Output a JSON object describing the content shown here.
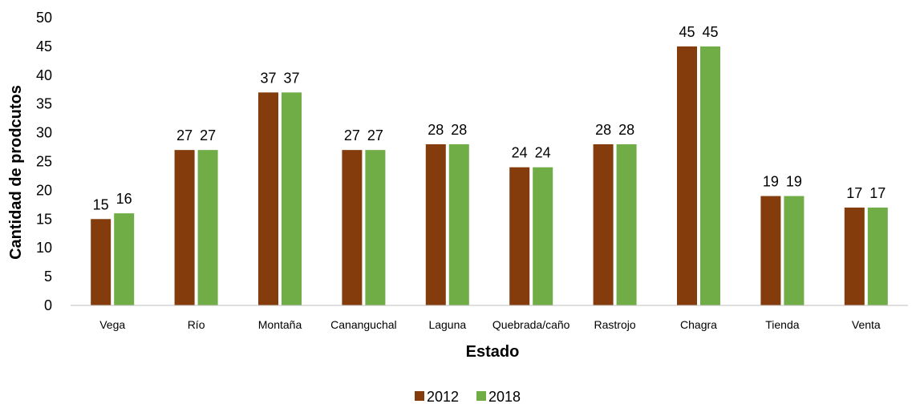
{
  "chart_data": {
    "type": "bar",
    "title": "",
    "xlabel": "Estado",
    "ylabel": "Cantidad de prodcutos",
    "ylim": [
      0,
      50
    ],
    "ytick_step": 5,
    "grid": false,
    "legend_position": "bottom",
    "categories": [
      "Vega",
      "Río",
      "Montaña",
      "Cananguchal",
      "Laguna",
      "Quebrada/caño",
      "Rastrojo",
      "Chagra",
      "Tienda",
      "Venta"
    ],
    "series": [
      {
        "name": "2012",
        "color": "#843C0C",
        "values": [
          15,
          27,
          37,
          27,
          28,
          24,
          28,
          45,
          19,
          17
        ]
      },
      {
        "name": "2018",
        "color": "#70AD47",
        "values": [
          16,
          27,
          37,
          27,
          28,
          24,
          28,
          45,
          19,
          17
        ]
      }
    ]
  }
}
